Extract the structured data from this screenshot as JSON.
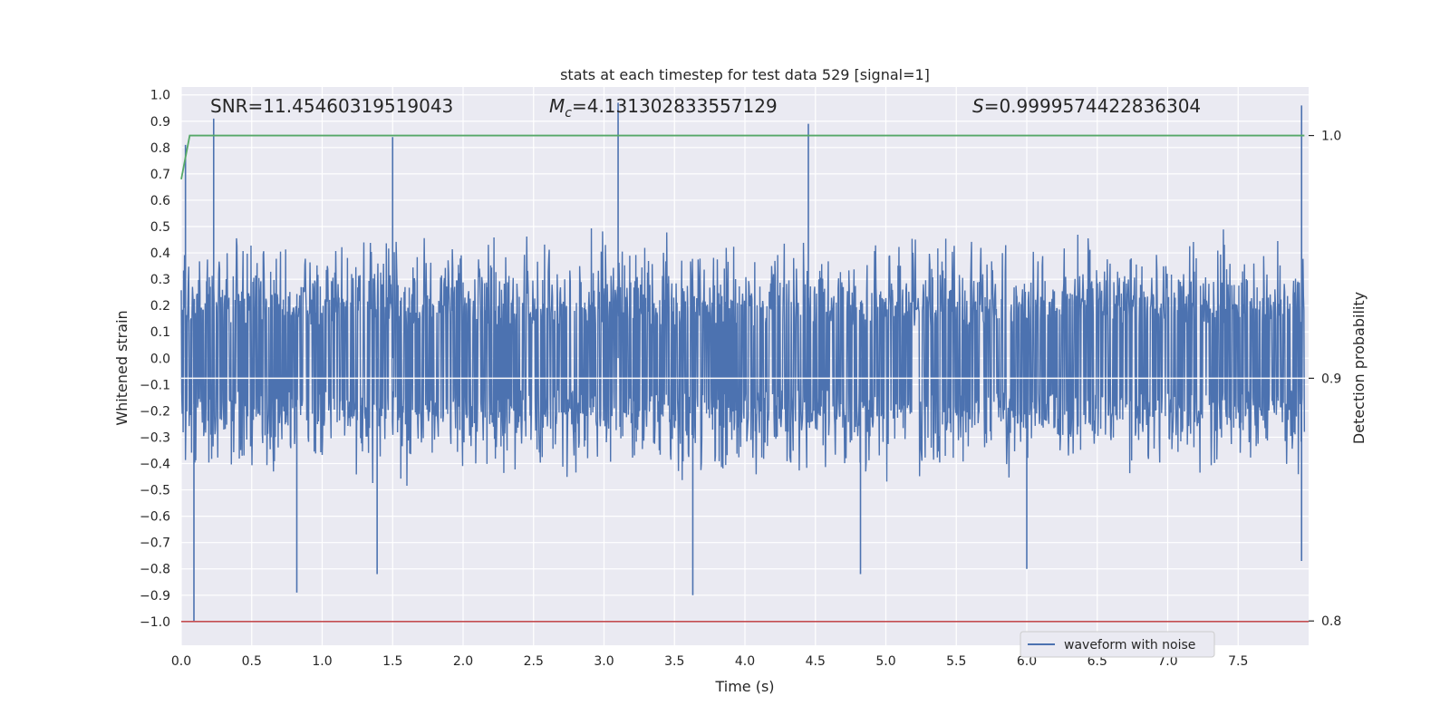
{
  "chart_data": {
    "type": "line",
    "title": "stats at each timestep for test data 529 [signal=1]",
    "xlabel": "Time (s)",
    "ylabel": "Whitened strain",
    "y2label": "Detection probability",
    "xlim": [
      0.0,
      8.0
    ],
    "ylim": [
      -1.09,
      1.03
    ],
    "y2lim": [
      0.79,
      1.02
    ],
    "xticks": [
      "0.0",
      "0.5",
      "1.0",
      "1.5",
      "2.0",
      "2.5",
      "3.0",
      "3.5",
      "4.0",
      "4.5",
      "5.0",
      "5.5",
      "6.0",
      "6.5",
      "7.0",
      "7.5"
    ],
    "yticks": [
      "1.0",
      "0.9",
      "0.8",
      "0.7",
      "0.6",
      "0.5",
      "0.4",
      "0.3",
      "0.2",
      "0.1",
      "0.0",
      "−0.1",
      "−0.2",
      "−0.3",
      "−0.4",
      "−0.5",
      "−0.6",
      "−0.7",
      "−0.8",
      "−0.9",
      "−1.0"
    ],
    "y2ticks": [
      "1.0",
      "0.9",
      "0.8"
    ],
    "grid": true,
    "legend": {
      "placement": "lower-right",
      "entries": [
        "waveform with noise"
      ]
    },
    "annotations": {
      "snr": "SNR=11.45460319519043",
      "mc_symbol": "M",
      "mc_sub": "c",
      "mc_value": "=4.131302833557129",
      "s_symbol": "S",
      "s_value": "=0.9999574422836304"
    },
    "series": [
      {
        "name": "waveform with noise",
        "axis": "left",
        "color": "#4c72b0",
        "style": "dense noise",
        "envelope_notable_peaks": [
          [
            0.03,
            0.81
          ],
          [
            0.23,
            0.91
          ],
          [
            1.5,
            0.84
          ],
          [
            3.1,
            0.97
          ],
          [
            4.45,
            0.89
          ],
          [
            7.95,
            0.96
          ]
        ],
        "envelope_notable_troughs": [
          [
            0.09,
            -1.0
          ],
          [
            0.82,
            -0.89
          ],
          [
            1.39,
            -0.82
          ],
          [
            3.63,
            -0.9
          ],
          [
            4.82,
            -0.82
          ],
          [
            6.0,
            -0.8
          ],
          [
            7.95,
            -0.77
          ]
        ]
      },
      {
        "name": "detection probability",
        "axis": "right",
        "color": "#55a868",
        "x": [
          0.0,
          0.06,
          7.97
        ],
        "y": [
          0.982,
          1.0,
          1.0
        ]
      },
      {
        "name": "threshold",
        "axis": "left",
        "color": "#c44e52",
        "x": [
          0.0,
          8.0
        ],
        "y": [
          -1.0,
          -1.0
        ]
      },
      {
        "name": "baseline",
        "axis": "right",
        "color": "#ffffff",
        "x": [
          0.0,
          8.0
        ],
        "y": [
          0.9,
          0.9
        ]
      }
    ]
  }
}
